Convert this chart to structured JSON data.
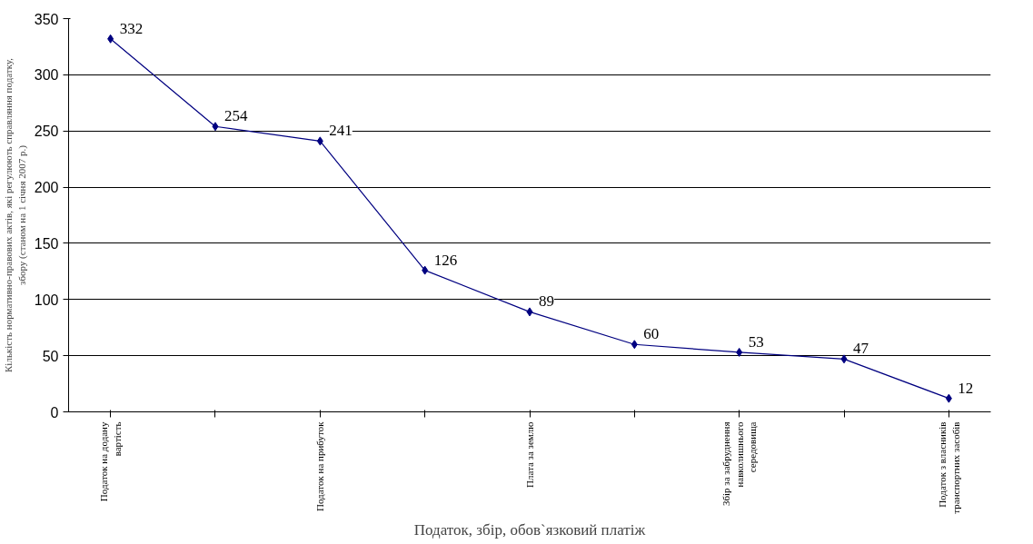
{
  "chart_data": {
    "type": "line",
    "xlabel": "Податок, збір, обов`язковий платіж",
    "ylabel": "Кількість нормативно-правових актів, які регулюють справляння податку, збору (станом на 1 січня 2007 р.)",
    "categories": [
      "Податок на додану вартість",
      null,
      "Податок на прибуток",
      null,
      "Плата за землю",
      null,
      "Збір за забруднення навколишнього середовища",
      null,
      "Податок з власників транспортних засобів"
    ],
    "series": [
      {
        "color": "#000080",
        "values": [
          332,
          254,
          241,
          126,
          89,
          60,
          53,
          47,
          12
        ]
      }
    ],
    "ylim": [
      0,
      350
    ],
    "yticks": [
      0,
      50,
      100,
      150,
      200,
      250,
      300,
      350
    ],
    "grid": "y",
    "marker": "diamond",
    "line_style": "solid",
    "data_labels": true
  }
}
